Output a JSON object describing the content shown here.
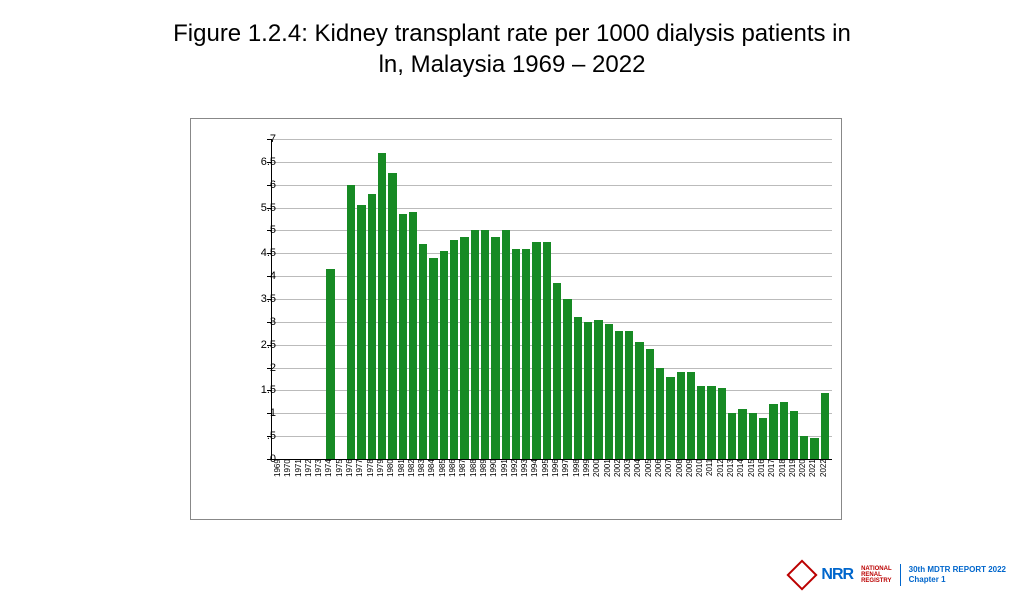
{
  "title_line1": "Figure 1.2.4: Kidney transplant rate per 1000 dialysis patients in",
  "title_line2": "ln, Malaysia 1969 – 2022",
  "chart": {
    "type": "bar",
    "bar_color": "#178a24",
    "background_color": "#ffffff",
    "grid_color": "#bbbbbb",
    "axis_color": "#000000",
    "ylim": [
      0,
      7
    ],
    "ytick_step": 0.5,
    "yticks": [
      0,
      0.5,
      1,
      1.5,
      2,
      2.5,
      3,
      3.5,
      4,
      4.5,
      5,
      5.5,
      6,
      6.5,
      7
    ],
    "ytick_labels": [
      "0",
      ".5",
      "1",
      "1.5",
      "2",
      "2.5",
      "3",
      "3.5",
      "4",
      "4.5",
      "5",
      "5.5",
      "6",
      "6.5",
      "7"
    ],
    "years": [
      1969,
      1970,
      1971,
      1972,
      1973,
      1974,
      1975,
      1976,
      1977,
      1978,
      1979,
      1980,
      1981,
      1982,
      1983,
      1984,
      1985,
      1986,
      1987,
      1988,
      1989,
      1990,
      1991,
      1992,
      1993,
      1994,
      1995,
      1996,
      1997,
      1998,
      1999,
      2000,
      2001,
      2002,
      2003,
      2004,
      2005,
      2006,
      2007,
      2008,
      2009,
      2010,
      2011,
      2012,
      2013,
      2014,
      2015,
      2016,
      2017,
      2018,
      2019,
      2020,
      2021,
      2022
    ],
    "values": [
      0,
      0,
      0,
      0,
      0,
      4.15,
      0,
      6.0,
      5.55,
      5.8,
      6.7,
      6.25,
      5.35,
      5.4,
      4.7,
      4.4,
      4.55,
      4.8,
      4.85,
      5.0,
      5.0,
      4.85,
      5.0,
      4.6,
      4.6,
      4.75,
      4.75,
      3.85,
      3.5,
      3.1,
      3.0,
      3.05,
      2.95,
      2.8,
      2.8,
      2.55,
      2.4,
      2.0,
      1.8,
      1.9,
      1.9,
      1.6,
      1.6,
      1.55,
      1.0,
      1.1,
      1.0,
      0.9,
      1.2,
      1.25,
      1.05,
      0.5,
      0.45,
      1.45
    ],
    "title_fontsize": 24,
    "ytick_fontsize": 11,
    "xtick_fontsize": 8
  },
  "footer": {
    "logo_text": "NRR",
    "logo_sub1": "NATIONAL",
    "logo_sub2": "RENAL",
    "logo_sub3": "REGISTRY",
    "report_line1": "30th MDTR REPORT 2022",
    "report_line2": "Chapter 1",
    "logo_color": "#0066cc",
    "accent_color": "#b00000"
  }
}
